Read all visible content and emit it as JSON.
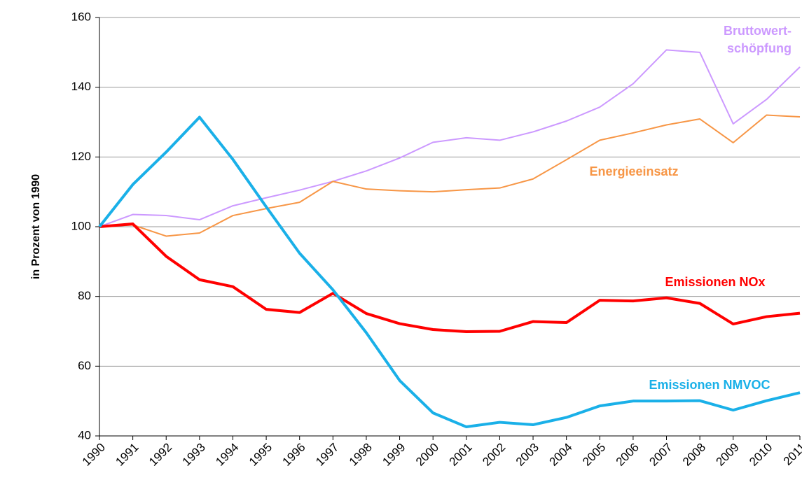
{
  "chart_data": {
    "type": "line",
    "y_label": "in Prozent von 1990",
    "x": [
      1990,
      1991,
      1992,
      1993,
      1994,
      1995,
      1996,
      1997,
      1998,
      1999,
      2000,
      2001,
      2002,
      2003,
      2004,
      2005,
      2006,
      2007,
      2008,
      2009,
      2010,
      2011
    ],
    "xlim": [
      1990,
      2011
    ],
    "xticks": [
      1990,
      1991,
      1992,
      1993,
      1994,
      1995,
      1996,
      1997,
      1998,
      1999,
      2000,
      2001,
      2002,
      2003,
      2004,
      2005,
      2006,
      2007,
      2008,
      2009,
      2010,
      2011
    ],
    "ylim": [
      40,
      160
    ],
    "yticks": [
      40,
      60,
      80,
      100,
      120,
      140,
      160
    ],
    "grid": true,
    "series": [
      {
        "name": "Bruttowert-\nschöpfung",
        "color": "#cc99ff",
        "width": 2,
        "values": [
          100,
          103.5,
          103.2,
          102,
          106,
          108.3,
          110.5,
          113,
          116,
          119.7,
          124.2,
          125.5,
          124.8,
          127.2,
          130.3,
          134.3,
          141,
          150.7,
          150,
          129.5,
          136.5,
          145.8
        ]
      },
      {
        "name": "Energieeinsatz",
        "color": "#f79646",
        "width": 2,
        "values": [
          100,
          100.5,
          97.3,
          98.2,
          103.2,
          105.2,
          107,
          113,
          110.8,
          110.3,
          110,
          110.6,
          111.1,
          113.7,
          119.2,
          124.8,
          126.9,
          129.2,
          130.9,
          124.1,
          132,
          131.5
        ]
      },
      {
        "name": "Emissionen NOx",
        "color": "#ff0000",
        "width": 4,
        "values": [
          100,
          100.8,
          91.5,
          84.8,
          82.8,
          76.3,
          75.4,
          80.9,
          75.1,
          72.2,
          70.5,
          69.9,
          70,
          72.8,
          72.5,
          78.9,
          78.7,
          79.6,
          78,
          72.1,
          74.2,
          75.2
        ]
      },
      {
        "name": "Emissionen NMVOC",
        "color": "#1ab0e8",
        "width": 4,
        "values": [
          100,
          112.1,
          121.4,
          131.4,
          119.3,
          105.7,
          92.4,
          81.9,
          69.6,
          55.9,
          46.6,
          42.6,
          43.9,
          43.2,
          45.3,
          48.6,
          50,
          50,
          50.1,
          47.4,
          50.1,
          52.4
        ]
      }
    ]
  }
}
